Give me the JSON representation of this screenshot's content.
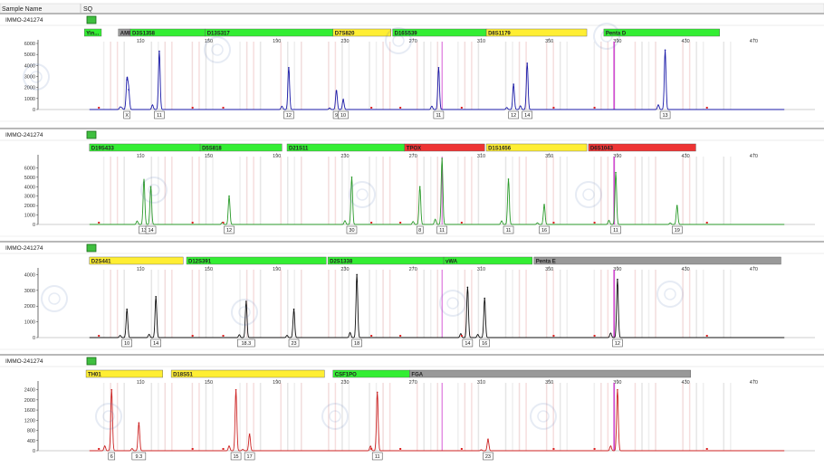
{
  "header": {
    "sample_label": "Sample Name",
    "sq_label": "SQ"
  },
  "colors": {
    "green": "#33ee33",
    "yellow": "#ffee33",
    "red": "#ee3333",
    "gray": "#999999",
    "marker_line": "#cc33cc"
  },
  "chart_data": [
    {
      "type": "line",
      "sample": "IMMO-241274",
      "dye_color": "#1a1aa8",
      "xlim": [
        70,
        490
      ],
      "ylim": [
        0,
        6000
      ],
      "ytick_labels": [
        "6000",
        "5000",
        "4000",
        "3000",
        "2000",
        "1000",
        "0"
      ],
      "xtick_labels": [
        "110",
        "150",
        "190",
        "230",
        "270",
        "310",
        "350",
        "390",
        "430",
        "470"
      ],
      "loci": [
        {
          "name": "Yin...",
          "start": 77,
          "end": 87,
          "color": "green"
        },
        {
          "name": "AMEL",
          "start": 97,
          "end": 104,
          "color": "gray"
        },
        {
          "name": "D3S1358",
          "start": 104,
          "end": 148,
          "color": "green"
        },
        {
          "name": "D13S317",
          "start": 148,
          "end": 223,
          "color": "green"
        },
        {
          "name": "D7S820",
          "start": 223,
          "end": 257,
          "color": "yellow"
        },
        {
          "name": "D16S539",
          "start": 258,
          "end": 313,
          "color": "green"
        },
        {
          "name": "D8S1179",
          "start": 313,
          "end": 372,
          "color": "yellow"
        },
        {
          "name": "Penta D",
          "start": 382,
          "end": 450,
          "color": "green"
        }
      ],
      "peaks": [
        {
          "x": 102,
          "y": 2700,
          "label": "X"
        },
        {
          "x": 103,
          "y": 1800,
          "label": ""
        },
        {
          "x": 121,
          "y": 5300,
          "label": "11"
        },
        {
          "x": 197,
          "y": 3800,
          "label": "12"
        },
        {
          "x": 225,
          "y": 1700,
          "label": "9"
        },
        {
          "x": 229,
          "y": 900,
          "label": "10"
        },
        {
          "x": 285,
          "y": 3800,
          "label": "11"
        },
        {
          "x": 329,
          "y": 2300,
          "label": "12"
        },
        {
          "x": 337,
          "y": 4200,
          "label": "14"
        },
        {
          "x": 418,
          "y": 5400,
          "label": "13"
        }
      ],
      "marker_x": 388
    },
    {
      "type": "line",
      "sample": "IMMO-241274",
      "dye_color": "#2a9a2a",
      "xlim": [
        70,
        490
      ],
      "ylim": [
        0,
        7000
      ],
      "ytick_labels": [
        "6000",
        "5000",
        "4000",
        "3000",
        "2000",
        "1000",
        "0"
      ],
      "xtick_labels": [
        "110",
        "150",
        "190",
        "230",
        "270",
        "310",
        "350",
        "390",
        "430",
        "470"
      ],
      "loci": [
        {
          "name": "D19S433",
          "start": 80,
          "end": 145,
          "color": "green"
        },
        {
          "name": "D5S818",
          "start": 145,
          "end": 193,
          "color": "green"
        },
        {
          "name": "D21S11",
          "start": 196,
          "end": 265,
          "color": "green"
        },
        {
          "name": "TPOX",
          "start": 265,
          "end": 312,
          "color": "red"
        },
        {
          "name": "D1S1656",
          "start": 313,
          "end": 372,
          "color": "yellow"
        },
        {
          "name": "D6S1043",
          "start": 373,
          "end": 436,
          "color": "red"
        }
      ],
      "peaks": [
        {
          "x": 112,
          "y": 4500,
          "label": "13"
        },
        {
          "x": 116,
          "y": 4000,
          "label": "14"
        },
        {
          "x": 162,
          "y": 3000,
          "label": "12"
        },
        {
          "x": 234,
          "y": 5000,
          "label": "30"
        },
        {
          "x": 274,
          "y": 4000,
          "label": "8"
        },
        {
          "x": 287,
          "y": 7000,
          "label": "11"
        },
        {
          "x": 326,
          "y": 4800,
          "label": "11"
        },
        {
          "x": 347,
          "y": 2100,
          "label": "16"
        },
        {
          "x": 389,
          "y": 5500,
          "label": "11"
        },
        {
          "x": 425,
          "y": 2000,
          "label": "19"
        }
      ],
      "marker_x": 388
    },
    {
      "type": "line",
      "sample": "IMMO-241274",
      "dye_color": "#111111",
      "xlim": [
        70,
        490
      ],
      "ylim": [
        0,
        4200
      ],
      "ytick_labels": [
        "4000",
        "3000",
        "2000",
        "1000",
        "0"
      ],
      "xtick_labels": [
        "110",
        "150",
        "190",
        "230",
        "270",
        "310",
        "350",
        "390",
        "430",
        "470"
      ],
      "loci": [
        {
          "name": "D2S441",
          "start": 80,
          "end": 135,
          "color": "yellow"
        },
        {
          "name": "D12S391",
          "start": 137,
          "end": 219,
          "color": "green"
        },
        {
          "name": "D2S1338",
          "start": 220,
          "end": 288,
          "color": "green"
        },
        {
          "name": "vWA",
          "start": 288,
          "end": 340,
          "color": "green"
        },
        {
          "name": "Penta E",
          "start": 341,
          "end": 486,
          "color": "gray"
        }
      ],
      "peaks": [
        {
          "x": 102,
          "y": 1800,
          "label": "10"
        },
        {
          "x": 119,
          "y": 2600,
          "label": "14"
        },
        {
          "x": 172,
          "y": 2300,
          "label": "18.3"
        },
        {
          "x": 200,
          "y": 1800,
          "label": "23"
        },
        {
          "x": 237,
          "y": 4000,
          "label": "18"
        },
        {
          "x": 302,
          "y": 3200,
          "label": "14"
        },
        {
          "x": 312,
          "y": 2500,
          "label": "16"
        },
        {
          "x": 390,
          "y": 3700,
          "label": "12"
        }
      ],
      "marker_x": 388
    },
    {
      "type": "line",
      "sample": "IMMO-241274",
      "dye_color": "#cc2222",
      "xlim": [
        70,
        490
      ],
      "ylim": [
        0,
        2600
      ],
      "ytick_labels": [
        "2400",
        "2000",
        "1600",
        "1200",
        "800",
        "400",
        "0"
      ],
      "xtick_labels": [
        "110",
        "150",
        "190",
        "230",
        "270",
        "310",
        "350",
        "390",
        "430",
        "470"
      ],
      "loci": [
        {
          "name": "TH01",
          "start": 78,
          "end": 123,
          "color": "yellow"
        },
        {
          "name": "D18S51",
          "start": 128,
          "end": 218,
          "color": "yellow"
        },
        {
          "name": "CSF1PO",
          "start": 223,
          "end": 268,
          "color": "green"
        },
        {
          "name": "FGA",
          "start": 268,
          "end": 433,
          "color": "gray"
        }
      ],
      "peaks": [
        {
          "x": 93,
          "y": 2400,
          "label": "6"
        },
        {
          "x": 109,
          "y": 1100,
          "label": "9.3"
        },
        {
          "x": 166,
          "y": 2400,
          "label": "15"
        },
        {
          "x": 174,
          "y": 650,
          "label": "17"
        },
        {
          "x": 249,
          "y": 2300,
          "label": "11"
        },
        {
          "x": 314,
          "y": 450,
          "label": "23"
        },
        {
          "x": 390,
          "y": 2400,
          "label": ""
        }
      ],
      "marker_x": 388
    }
  ]
}
